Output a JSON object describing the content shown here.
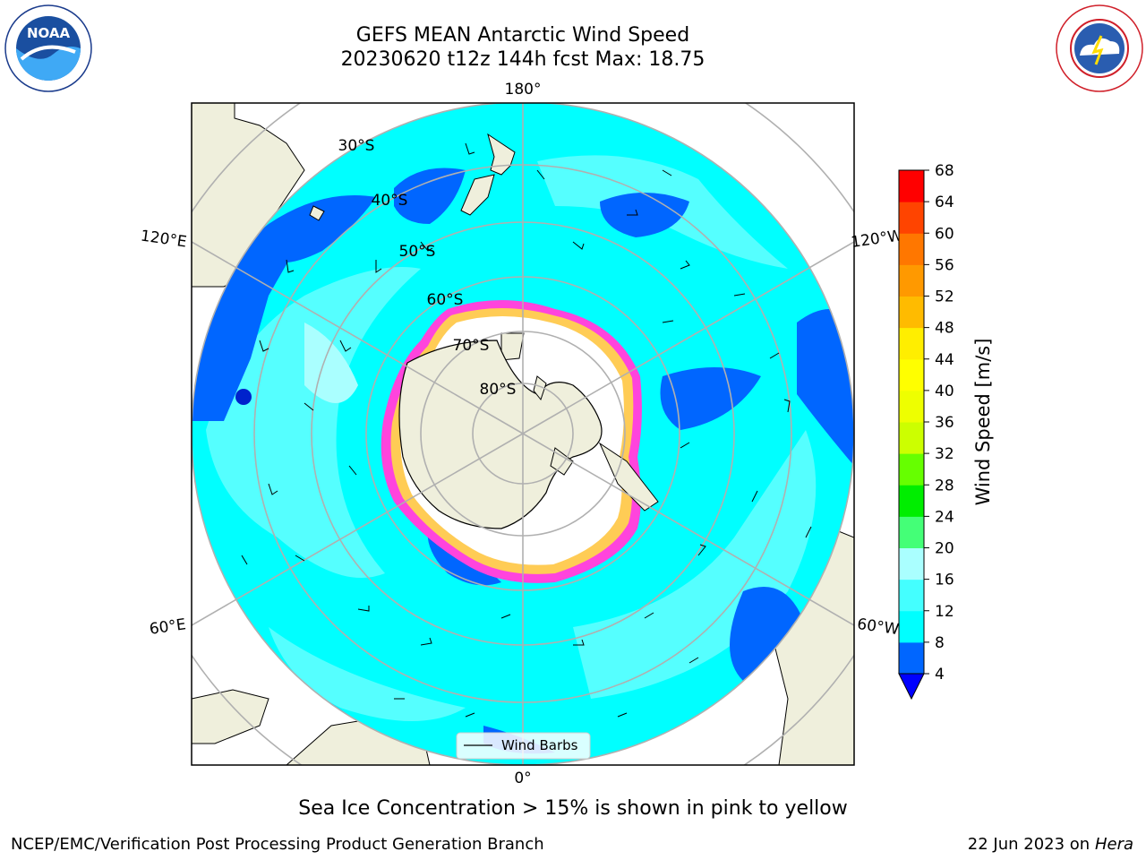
{
  "title_line1": "GEFS MEAN Antarctic Wind Speed",
  "title_line2": "20230620 t12z 144h fcst   Max: 18.75",
  "logos": {
    "noara_icon": "noaa-logo-icon",
    "nws_icon": "nws-logo-icon",
    "noaa_text": "NOAA",
    "noaa_ring_text": "NATIONAL OCEANIC AND ATMOSPHERIC ADMINISTRATION · U.S. DEPARTMENT OF COMMERCE",
    "nws_ring_text": "NATIONAL WEATHER SERVICE"
  },
  "map": {
    "projection": "south-polar-stereographic",
    "longitude_labels": {
      "top": "180°",
      "bottom": "0°",
      "upper_left": "120°E",
      "lower_left": "60°E",
      "upper_right": "120°W",
      "lower_right": "60°W"
    },
    "latitude_labels": [
      "30°S",
      "40°S",
      "50°S",
      "60°S",
      "70°S",
      "80°S"
    ],
    "legend_label": "Wind Barbs",
    "colors": {
      "ocean_low": "#0066ff",
      "ocean_mid": "#00ffff",
      "ocean_high": "#55ffff",
      "land": "#efefdc",
      "ice": "#ffffff",
      "ice_edge": "#ff44dd"
    }
  },
  "colorbar": {
    "label": "Wind Speed [m/s]",
    "ticks": [
      "4",
      "8",
      "12",
      "16",
      "20",
      "24",
      "28",
      "32",
      "36",
      "40",
      "44",
      "48",
      "52",
      "56",
      "60",
      "64",
      "68"
    ],
    "colors": [
      "#0066ff",
      "#00ffff",
      "#44ffff",
      "#aaffff",
      "#44ff77",
      "#00ee00",
      "#66ff00",
      "#ccff00",
      "#eeff00",
      "#ffff00",
      "#ffee00",
      "#ffbb00",
      "#ff9900",
      "#ff7700",
      "#ff4400",
      "#ff0000"
    ],
    "extend_low_color": "#0000ff"
  },
  "note": "Sea Ice Concentration > 15% is shown in pink to yellow",
  "footer_left": "NCEP/EMC/Verification Post Processing Product Generation Branch",
  "footer_right_prefix": "22 Jun 2023 on",
  "footer_right_machine": "Hera"
}
